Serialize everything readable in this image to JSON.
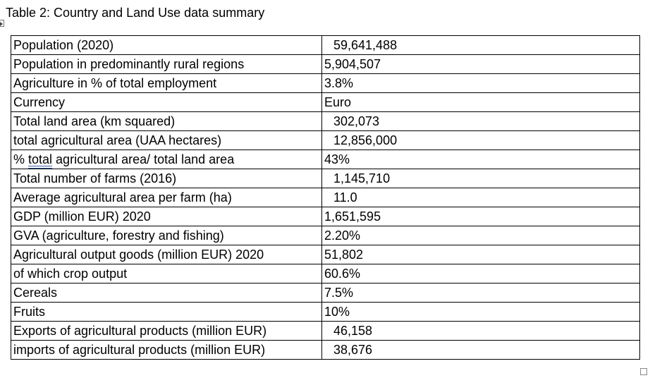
{
  "caption": "Table 2: Country and Land Use data summary",
  "rows": [
    {
      "label": "Population (2020)",
      "value": "59,641,488"
    },
    {
      "label": "Population in predominantly rural regions",
      "value": "5,904,507"
    },
    {
      "label": "Agriculture in % of total employment",
      "value": "3.8%"
    },
    {
      "label": "Currency",
      "value": "Euro"
    },
    {
      "label": "Total land area (km squared)",
      "value": "302,073"
    },
    {
      "label": "total agricultural area (UAA hectares)",
      "value": "12,856,000"
    },
    {
      "label_prefix": "% ",
      "label_marked": "total",
      "label_suffix": " agricultural area/ total land area",
      "value": "43%"
    },
    {
      "label": "Total number of farms (2016)",
      "value": "1,145,710"
    },
    {
      "label": "Average agricultural area per farm (ha)",
      "value": "11.0"
    },
    {
      "label": "GDP (million EUR) 2020",
      "value": "1,651,595"
    },
    {
      "label": "GVA (agriculture, forestry and fishing)",
      "value": "2.20%"
    },
    {
      "label": "Agricultural output goods (million EUR) 2020",
      "value": "51,802"
    },
    {
      "label": "of which crop output",
      "value": "60.6%"
    },
    {
      "label": "Cereals",
      "value": "7.5%"
    },
    {
      "label": "Fruits",
      "value": "10%"
    },
    {
      "label": "Exports of agricultural products (million EUR)",
      "value": "46,158"
    },
    {
      "label": "imports of agricultural products (million EUR)",
      "value": "38,676"
    }
  ]
}
